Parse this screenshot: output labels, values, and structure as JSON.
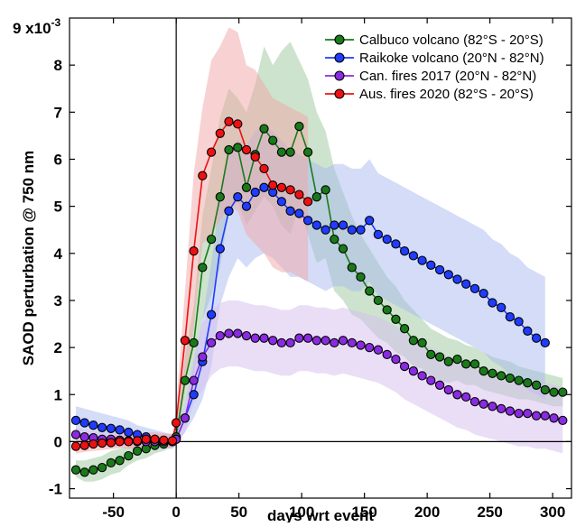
{
  "chart_data": {
    "type": "line",
    "title": "",
    "xlabel": "days wrt event",
    "ylabel": "SAOD perturbation @ 750 nm",
    "y_scale_label": "9 x10",
    "y_scale_exponent": "-3",
    "xlim": [
      -85,
      315
    ],
    "ylim": [
      -1.2,
      9.0
    ],
    "xticks": [
      -50,
      0,
      50,
      100,
      150,
      200,
      250,
      300
    ],
    "yticks": [
      -1,
      0,
      1,
      2,
      3,
      4,
      5,
      6,
      7,
      8
    ],
    "grid": false,
    "legend_position": "top-right",
    "series": [
      {
        "name": "Calbuco volcano (82°S - 20°S)",
        "color": "#1a7a1a",
        "band_color": "#9cc79c",
        "x": [
          -80,
          -73,
          -66,
          -59,
          -52,
          -45,
          -38,
          -31,
          -24,
          -17,
          -10,
          -3,
          0,
          7,
          14,
          21,
          28,
          35,
          42,
          49,
          56,
          63,
          70,
          77,
          84,
          91,
          98,
          105,
          112,
          119,
          126,
          133,
          140,
          147,
          154,
          161,
          168,
          175,
          182,
          189,
          196,
          203,
          210,
          217,
          224,
          231,
          238,
          245,
          252,
          259,
          266,
          273,
          280,
          287,
          294,
          301,
          308
        ],
        "y": [
          -0.6,
          -0.65,
          -0.6,
          -0.55,
          -0.45,
          -0.4,
          -0.3,
          -0.2,
          -0.15,
          -0.08,
          -0.05,
          0.0,
          0.1,
          1.3,
          2.1,
          3.7,
          4.3,
          5.2,
          6.2,
          6.25,
          5.4,
          6.1,
          6.65,
          6.4,
          6.15,
          6.15,
          6.7,
          6.15,
          5.2,
          5.35,
          4.3,
          4.1,
          3.7,
          3.5,
          3.2,
          3.0,
          2.8,
          2.6,
          2.4,
          2.15,
          2.1,
          1.85,
          1.8,
          1.7,
          1.75,
          1.65,
          1.65,
          1.5,
          1.45,
          1.4,
          1.35,
          1.3,
          1.25,
          1.2,
          1.1,
          1.05,
          1.05
        ],
        "upper": [
          -0.4,
          -0.4,
          -0.35,
          -0.3,
          -0.2,
          -0.15,
          -0.1,
          0.0,
          0.05,
          0.1,
          0.1,
          0.1,
          0.2,
          1.8,
          2.9,
          4.8,
          5.8,
          6.9,
          7.5,
          7.3,
          7.0,
          7.6,
          8.4,
          8.0,
          8.3,
          8.5,
          8.1,
          7.7,
          7.0,
          6.6,
          5.8,
          5.3,
          4.8,
          4.4,
          4.1,
          3.8,
          3.5,
          3.3,
          3.0,
          2.8,
          2.6,
          2.4,
          2.3,
          2.2,
          2.15,
          2.05,
          2.0,
          1.9,
          1.8,
          1.75,
          1.7,
          1.6,
          1.55,
          1.5,
          1.45,
          1.4,
          1.35
        ],
        "lower": [
          -0.75,
          -0.85,
          -0.85,
          -0.8,
          -0.7,
          -0.65,
          -0.5,
          -0.4,
          -0.35,
          -0.25,
          -0.2,
          -0.1,
          0.0,
          0.8,
          1.4,
          2.6,
          3.1,
          3.7,
          4.9,
          5.1,
          4.6,
          4.9,
          5.2,
          5.0,
          4.6,
          4.4,
          5.0,
          4.4,
          3.8,
          3.9,
          3.2,
          3.0,
          2.7,
          2.6,
          2.4,
          2.2,
          2.1,
          1.9,
          1.8,
          1.6,
          1.55,
          1.35,
          1.3,
          1.25,
          1.3,
          1.2,
          1.2,
          1.1,
          1.05,
          1.0,
          0.95,
          0.9,
          0.9,
          0.85,
          0.8,
          0.75,
          0.75
        ]
      },
      {
        "name": "Raikoke volcano (20°N - 82°N)",
        "color": "#1f3cff",
        "band_color": "#a9b9f0",
        "x": [
          -80,
          -73,
          -66,
          -59,
          -52,
          -45,
          -38,
          -31,
          -24,
          -17,
          -10,
          -3,
          0,
          7,
          14,
          21,
          28,
          35,
          42,
          49,
          56,
          63,
          70,
          77,
          84,
          91,
          98,
          105,
          112,
          119,
          126,
          133,
          140,
          147,
          154,
          161,
          168,
          175,
          182,
          189,
          196,
          203,
          210,
          217,
          224,
          231,
          238,
          245,
          252,
          259,
          266,
          273,
          280,
          287,
          294
        ],
        "y": [
          0.45,
          0.4,
          0.35,
          0.3,
          0.28,
          0.25,
          0.2,
          0.15,
          0.1,
          0.05,
          0.02,
          0.0,
          0.05,
          0.5,
          1.0,
          1.7,
          2.7,
          4.1,
          4.9,
          5.2,
          5.0,
          5.3,
          5.4,
          5.3,
          5.1,
          4.9,
          4.85,
          4.7,
          4.6,
          4.5,
          4.6,
          4.6,
          4.5,
          4.5,
          4.7,
          4.4,
          4.3,
          4.2,
          4.05,
          3.95,
          3.85,
          3.75,
          3.65,
          3.55,
          3.45,
          3.35,
          3.25,
          3.15,
          2.95,
          2.85,
          2.65,
          2.55,
          2.35,
          2.2,
          2.1
        ],
        "upper": [
          0.75,
          0.7,
          0.65,
          0.6,
          0.55,
          0.5,
          0.45,
          0.35,
          0.3,
          0.25,
          0.2,
          0.15,
          0.15,
          0.8,
          1.6,
          2.6,
          3.8,
          5.2,
          6.2,
          6.4,
          6.3,
          6.6,
          6.7,
          6.6,
          6.4,
          6.2,
          6.1,
          6.0,
          5.9,
          5.8,
          5.9,
          5.9,
          5.8,
          5.8,
          6.0,
          5.7,
          5.6,
          5.5,
          5.4,
          5.3,
          5.2,
          5.1,
          5.0,
          4.9,
          4.8,
          4.7,
          4.6,
          4.5,
          4.3,
          4.2,
          4.0,
          3.9,
          3.7,
          3.6,
          3.5
        ],
        "lower": [
          0.15,
          0.1,
          0.05,
          0.0,
          0.0,
          0.0,
          -0.05,
          -0.05,
          -0.1,
          -0.15,
          -0.15,
          -0.15,
          -0.05,
          0.2,
          0.5,
          0.9,
          1.6,
          2.9,
          3.5,
          3.9,
          3.7,
          3.9,
          4.0,
          3.9,
          3.7,
          3.5,
          3.5,
          3.4,
          3.3,
          3.2,
          3.3,
          3.3,
          3.2,
          3.2,
          3.4,
          3.1,
          3.0,
          2.9,
          2.8,
          2.7,
          2.6,
          2.5,
          2.4,
          2.3,
          2.2,
          2.1,
          2.0,
          1.9,
          1.7,
          1.6,
          1.4,
          1.3,
          1.1,
          1.0,
          0.9
        ]
      },
      {
        "name": "Can. fires 2017 (20°N - 82°N)",
        "color": "#8a2be2",
        "band_color": "#d6bdf0",
        "x": [
          -80,
          -73,
          -66,
          -59,
          -52,
          -45,
          -38,
          -31,
          -24,
          -17,
          -10,
          -3,
          0,
          7,
          14,
          21,
          28,
          35,
          42,
          49,
          56,
          63,
          70,
          77,
          84,
          91,
          98,
          105,
          112,
          119,
          126,
          133,
          140,
          147,
          154,
          161,
          168,
          175,
          182,
          189,
          196,
          203,
          210,
          217,
          224,
          231,
          238,
          245,
          252,
          259,
          266,
          273,
          280,
          287,
          294,
          301,
          308
        ],
        "y": [
          0.15,
          0.1,
          0.08,
          0.05,
          0.05,
          0.03,
          0.02,
          0.0,
          0.0,
          0.0,
          0.0,
          0.0,
          0.05,
          0.5,
          1.3,
          1.8,
          2.1,
          2.25,
          2.3,
          2.3,
          2.25,
          2.2,
          2.2,
          2.15,
          2.1,
          2.1,
          2.2,
          2.2,
          2.15,
          2.15,
          2.1,
          2.15,
          2.1,
          2.05,
          2.0,
          1.95,
          1.85,
          1.75,
          1.6,
          1.5,
          1.4,
          1.3,
          1.2,
          1.1,
          1.0,
          0.95,
          0.85,
          0.8,
          0.75,
          0.7,
          0.65,
          0.6,
          0.6,
          0.55,
          0.55,
          0.5,
          0.45
        ],
        "upper": [
          0.3,
          0.25,
          0.22,
          0.2,
          0.2,
          0.18,
          0.16,
          0.15,
          0.15,
          0.15,
          0.15,
          0.15,
          0.2,
          0.8,
          1.8,
          2.5,
          2.8,
          2.95,
          3.0,
          3.0,
          2.95,
          2.9,
          2.9,
          2.85,
          2.8,
          2.8,
          2.9,
          2.9,
          2.85,
          2.85,
          2.8,
          2.85,
          2.8,
          2.75,
          2.7,
          2.65,
          2.55,
          2.45,
          2.3,
          2.2,
          2.1,
          2.0,
          1.9,
          1.8,
          1.7,
          1.65,
          1.55,
          1.5,
          1.45,
          1.4,
          1.35,
          1.3,
          1.3,
          1.25,
          1.25,
          1.2,
          1.15
        ],
        "lower": [
          0.0,
          -0.05,
          -0.08,
          -0.1,
          -0.1,
          -0.12,
          -0.14,
          -0.15,
          -0.15,
          -0.15,
          -0.15,
          -0.15,
          -0.1,
          0.2,
          0.8,
          1.1,
          1.4,
          1.55,
          1.6,
          1.6,
          1.55,
          1.5,
          1.5,
          1.45,
          1.4,
          1.4,
          1.5,
          1.5,
          1.45,
          1.45,
          1.4,
          1.45,
          1.4,
          1.35,
          1.3,
          1.25,
          1.15,
          1.05,
          0.9,
          0.8,
          0.7,
          0.6,
          0.5,
          0.4,
          0.3,
          0.25,
          0.15,
          0.1,
          0.05,
          0.0,
          -0.05,
          -0.1,
          -0.1,
          -0.15,
          -0.15,
          -0.2,
          -0.25
        ]
      },
      {
        "name": "Aus. fires 2020 (82°S - 20°S)",
        "color": "#ee1111",
        "band_color": "#f2a6a6",
        "x": [
          -80,
          -73,
          -66,
          -59,
          -52,
          -45,
          -38,
          -31,
          -24,
          -17,
          -10,
          -3,
          0,
          7,
          14,
          21,
          28,
          35,
          42,
          49,
          56,
          63,
          70,
          77,
          84,
          91,
          98,
          105
        ],
        "y": [
          -0.1,
          -0.08,
          -0.05,
          -0.03,
          -0.02,
          0.0,
          0.0,
          0.02,
          0.05,
          0.05,
          0.03,
          0.02,
          0.4,
          2.15,
          4.05,
          5.65,
          6.15,
          6.55,
          6.8,
          6.75,
          6.2,
          6.05,
          5.8,
          5.45,
          5.4,
          5.35,
          5.25,
          5.1
        ],
        "upper": [
          0.05,
          0.06,
          0.08,
          0.1,
          0.12,
          0.14,
          0.15,
          0.17,
          0.2,
          0.2,
          0.18,
          0.17,
          0.7,
          3.2,
          5.7,
          7.1,
          8.1,
          8.4,
          8.8,
          8.7,
          8.0,
          7.9,
          7.6,
          7.3,
          7.2,
          7.1,
          7.0,
          6.9
        ],
        "lower": [
          -0.25,
          -0.22,
          -0.2,
          -0.18,
          -0.16,
          -0.14,
          -0.15,
          -0.13,
          -0.1,
          -0.1,
          -0.12,
          -0.13,
          0.1,
          1.1,
          2.4,
          4.2,
          4.4,
          4.7,
          5.0,
          4.9,
          4.4,
          4.2,
          4.0,
          3.7,
          3.6,
          3.6,
          3.5,
          3.4
        ]
      }
    ]
  }
}
